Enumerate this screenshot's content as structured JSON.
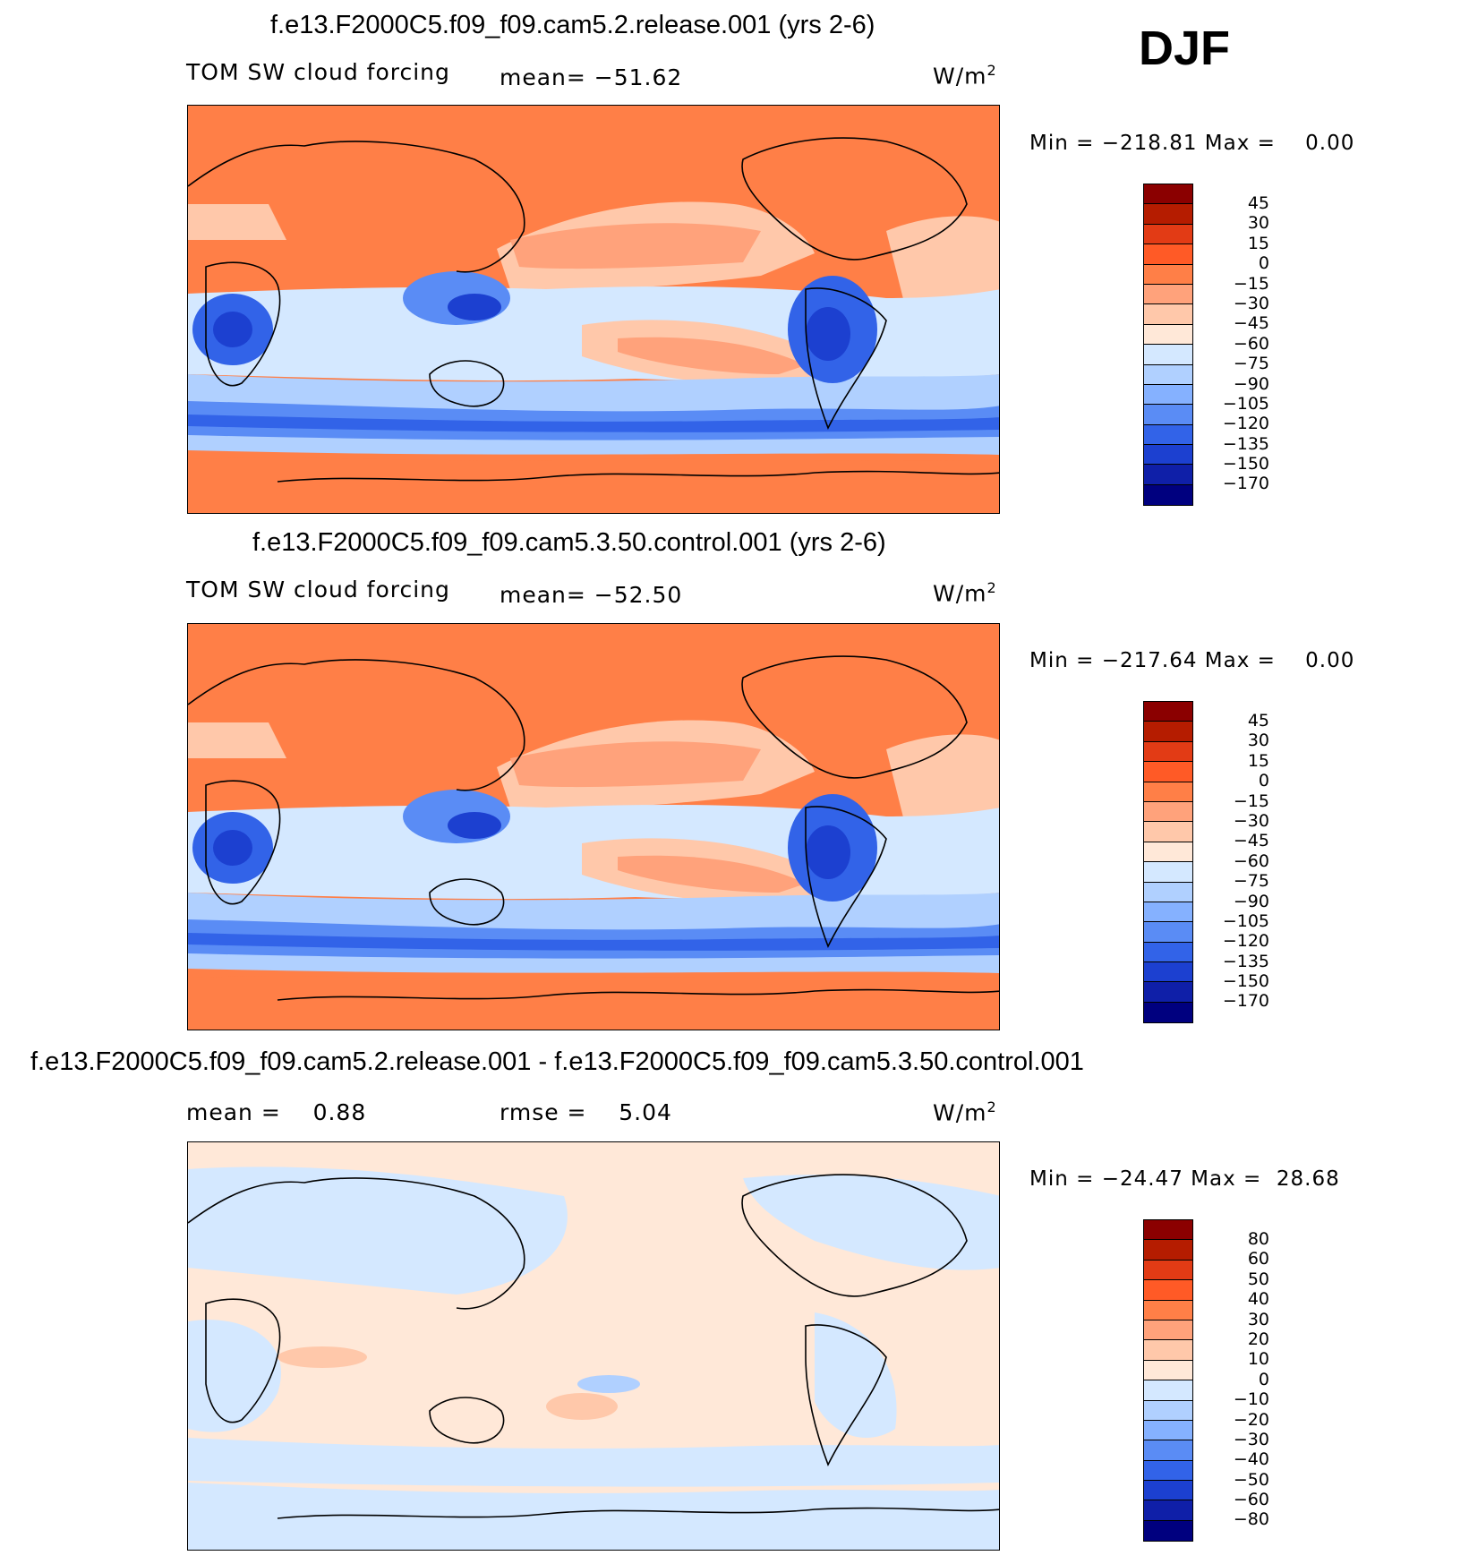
{
  "season": "DJF",
  "panels": [
    {
      "title": "f.e13.F2000C5.f09_f09.cam5.2.release.001 (yrs 2-6)",
      "variable": "TOM SW cloud forcing",
      "stat": "mean= −51.62",
      "units": "W/m",
      "units_sup": "2",
      "minmax": "Min = −218.81 Max =    0.00",
      "fill": "#ff7f47",
      "colorbar": {
        "labels": [
          "45",
          "30",
          "15",
          "0",
          "−15",
          "−30",
          "−45",
          "−60",
          "−75",
          "−90",
          "−105",
          "−120",
          "−135",
          "−150",
          "−170"
        ],
        "colors": [
          "#8b0000",
          "#b51c00",
          "#e23b15",
          "#ff5a26",
          "#ff7f47",
          "#ffa27b",
          "#ffc8aa",
          "#ffe8d8",
          "#d4e8ff",
          "#b0d0ff",
          "#85b1ff",
          "#5a8cf5",
          "#3263e8",
          "#1c40d0",
          "#0f1fa8",
          "#00007f"
        ]
      }
    },
    {
      "title": "f.e13.F2000C5.f09_f09.cam5.3.50.control.001 (yrs 2-6)",
      "variable": "TOM SW cloud forcing",
      "stat": "mean= −52.50",
      "units": "W/m",
      "units_sup": "2",
      "minmax": "Min = −217.64 Max =    0.00",
      "fill": "#ff7f47",
      "colorbar": {
        "labels": [
          "45",
          "30",
          "15",
          "0",
          "−15",
          "−30",
          "−45",
          "−60",
          "−75",
          "−90",
          "−105",
          "−120",
          "−135",
          "−150",
          "−170"
        ],
        "colors": [
          "#8b0000",
          "#b51c00",
          "#e23b15",
          "#ff5a26",
          "#ff7f47",
          "#ffa27b",
          "#ffc8aa",
          "#ffe8d8",
          "#d4e8ff",
          "#b0d0ff",
          "#85b1ff",
          "#5a8cf5",
          "#3263e8",
          "#1c40d0",
          "#0f1fa8",
          "#00007f"
        ]
      }
    },
    {
      "title": "f.e13.F2000C5.f09_f09.cam5.2.release.001 - f.e13.F2000C5.f09_f09.cam5.3.50.control.001",
      "variable": "mean =    0.88",
      "stat": "rmse =    5.04",
      "units": "W/m",
      "units_sup": "2",
      "minmax": "Min = −24.47 Max =  28.68",
      "fill": "#ffe8d8",
      "colorbar": {
        "labels": [
          "80",
          "60",
          "50",
          "40",
          "30",
          "20",
          "10",
          "0",
          "−10",
          "−20",
          "−30",
          "−40",
          "−50",
          "−60",
          "−80"
        ],
        "colors": [
          "#8b0000",
          "#b51c00",
          "#e23b15",
          "#ff5a26",
          "#ff7f47",
          "#ffa27b",
          "#ffc8aa",
          "#ffe8d8",
          "#d4e8ff",
          "#b0d0ff",
          "#85b1ff",
          "#5a8cf5",
          "#3263e8",
          "#1c40d0",
          "#0f1fa8",
          "#00007f"
        ]
      }
    }
  ]
}
